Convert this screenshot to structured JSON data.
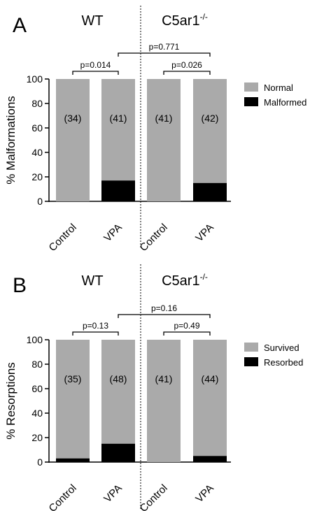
{
  "chart_data": [
    {
      "panel": "A",
      "type": "bar",
      "stacked": true,
      "groups": [
        "WT",
        "C5ar1-/-"
      ],
      "categories": [
        "Control",
        "VPA",
        "Control",
        "VPA"
      ],
      "series": [
        {
          "name": "Normal",
          "values": [
            100,
            83,
            100,
            85
          ],
          "color": "#aaaaaa"
        },
        {
          "name": "Malformed",
          "values": [
            0,
            17,
            0,
            15
          ],
          "color": "#000000"
        }
      ],
      "n_labels": [
        "(34)",
        "(41)",
        "(41)",
        "(42)"
      ],
      "ylabel": "% Malformations",
      "ylim": [
        0,
        100
      ],
      "yticks": [
        0,
        20,
        40,
        60,
        80,
        100
      ],
      "comparisons": [
        {
          "from": 0,
          "to": 1,
          "label": "p=0.014"
        },
        {
          "from": 2,
          "to": 3,
          "label": "p=0.026"
        },
        {
          "from": 1,
          "to": 3,
          "label": "p=0.771"
        }
      ],
      "legend": "right"
    },
    {
      "panel": "B",
      "type": "bar",
      "stacked": true,
      "groups": [
        "WT",
        "C5ar1-/-"
      ],
      "categories": [
        "Control",
        "VPA",
        "Control",
        "VPA"
      ],
      "series": [
        {
          "name": "Survived",
          "values": [
            97,
            85,
            100,
            95
          ],
          "color": "#aaaaaa"
        },
        {
          "name": "Resorbed",
          "values": [
            3,
            15,
            0,
            5
          ],
          "color": "#000000"
        }
      ],
      "n_labels": [
        "(35)",
        "(48)",
        "(41)",
        "(44)"
      ],
      "ylabel": "% Resorptions",
      "ylim": [
        0,
        100
      ],
      "yticks": [
        0,
        20,
        40,
        60,
        80,
        100
      ],
      "comparisons": [
        {
          "from": 0,
          "to": 1,
          "label": "p=0.13"
        },
        {
          "from": 2,
          "to": 3,
          "label": "p=0.49"
        },
        {
          "from": 1,
          "to": 3,
          "label": "p=0.16"
        }
      ],
      "legend": "right"
    }
  ]
}
